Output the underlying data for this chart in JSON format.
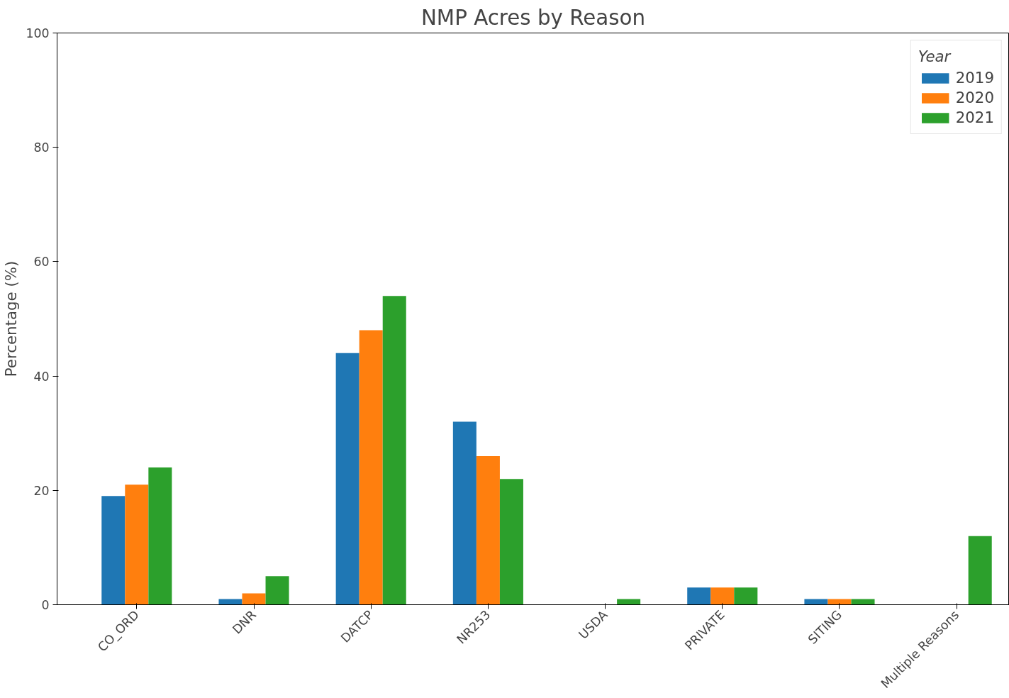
{
  "chart_data": {
    "type": "bar",
    "title": "NMP Acres by Reason",
    "ylabel": "Percentage (%)",
    "legend_title": "Year",
    "categories": [
      "CO_ORD",
      "DNR",
      "DATCP",
      "NR253",
      "USDA",
      "PRIVATE",
      "SITING",
      "Multiple Reasons"
    ],
    "series": [
      {
        "name": "2019",
        "color": "#1f77b4",
        "values": [
          19,
          1,
          44,
          32,
          0,
          3,
          1,
          0
        ]
      },
      {
        "name": "2020",
        "color": "#ff7f0e",
        "values": [
          21,
          2,
          48,
          26,
          0,
          3,
          1,
          0
        ]
      },
      {
        "name": "2021",
        "color": "#2ca02c",
        "values": [
          24,
          5,
          54,
          22,
          1,
          3,
          1,
          12
        ]
      }
    ],
    "ylim": [
      0,
      100
    ],
    "yticks": [
      0,
      20,
      40,
      60,
      80,
      100
    ],
    "grid": false,
    "legend": "top right"
  }
}
